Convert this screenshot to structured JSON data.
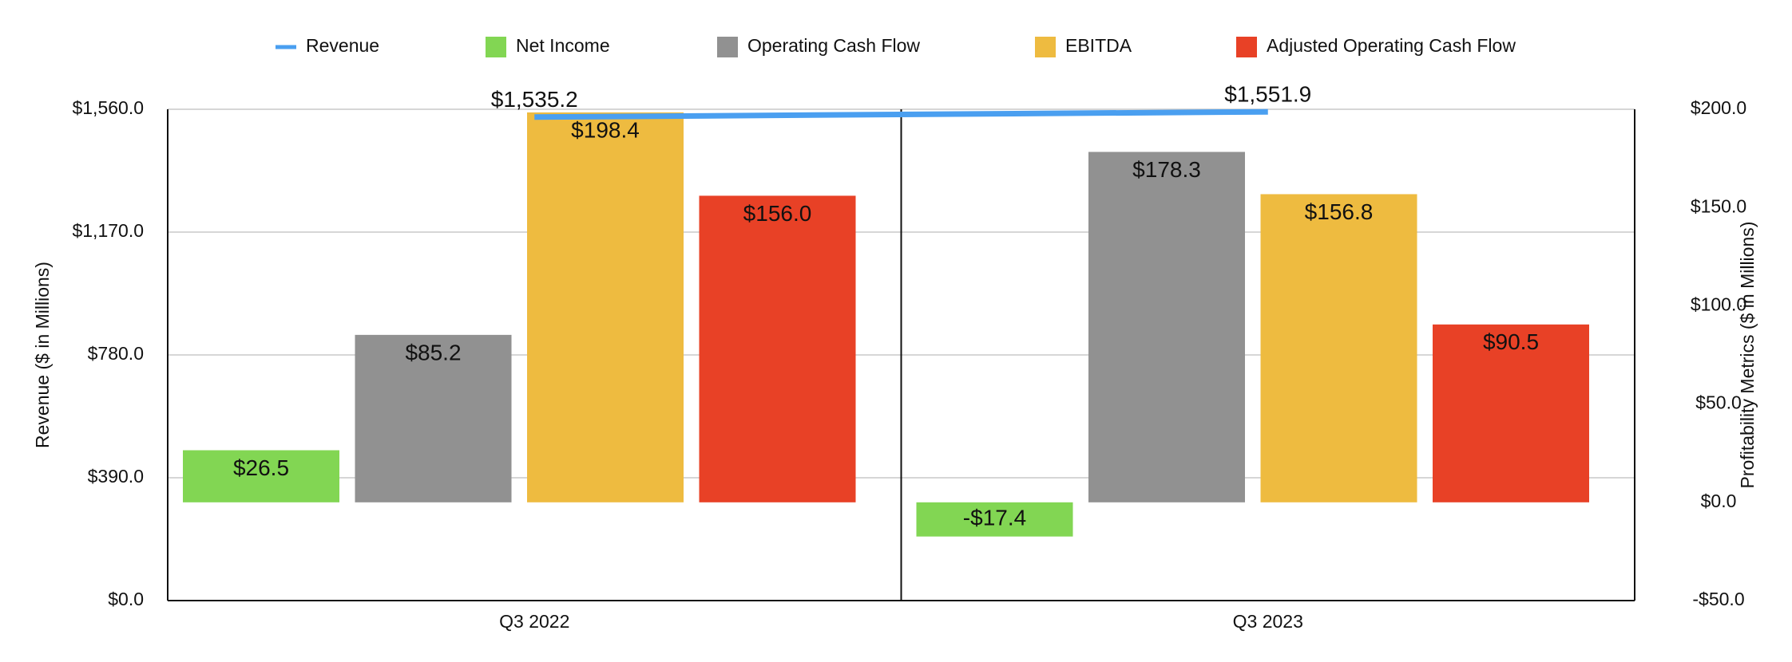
{
  "chart_data": {
    "type": "bar",
    "categories": [
      "Q3 2022",
      "Q3 2023"
    ],
    "series": [
      {
        "name": "Revenue",
        "type": "line",
        "color": "#4a9ff0",
        "values": [
          1535.2,
          1551.9
        ],
        "value_labels": [
          "$1,535.2",
          "$1,551.9"
        ]
      },
      {
        "name": "Net Income",
        "color": "#82d653",
        "axis": "y2",
        "values": [
          26.5,
          -17.4
        ],
        "value_labels": [
          "$26.5",
          "-$17.4"
        ]
      },
      {
        "name": "Operating Cash Flow",
        "color": "#919191",
        "axis": "y2",
        "values": [
          85.2,
          178.3
        ],
        "value_labels": [
          "$85.2",
          "$178.3"
        ]
      },
      {
        "name": "EBITDA",
        "color": "#eebb40",
        "axis": "y2",
        "values": [
          198.4,
          156.8
        ],
        "value_labels": [
          "$198.4",
          "$156.8"
        ]
      },
      {
        "name": "Adjusted Operating Cash Flow",
        "color": "#e84126",
        "axis": "y2",
        "values": [
          156.0,
          90.5
        ],
        "value_labels": [
          "$156.0",
          "$90.5"
        ]
      }
    ],
    "y_label": "Revenue ($ in Millions)",
    "y2_label": "Profitability Metrics ($ in Millions)",
    "ylim": [
      0,
      1560
    ],
    "yticks": [
      {
        "value": 0,
        "label": "$0.0"
      },
      {
        "value": 390,
        "label": "$390.0"
      },
      {
        "value": 780,
        "label": "$780.0"
      },
      {
        "value": 1170,
        "label": "$1,170.0"
      },
      {
        "value": 1560,
        "label": "$1,560.0"
      }
    ],
    "y2lim": [
      -50,
      200
    ],
    "y2ticks": [
      {
        "value": -50,
        "label": "-$50.0"
      },
      {
        "value": 0,
        "label": "$0.0"
      },
      {
        "value": 50,
        "label": "$50.0"
      },
      {
        "value": 100,
        "label": "$100.0"
      },
      {
        "value": 150,
        "label": "$150.0"
      },
      {
        "value": 200,
        "label": "$200.0"
      }
    ],
    "grid": true,
    "legend": "top"
  }
}
